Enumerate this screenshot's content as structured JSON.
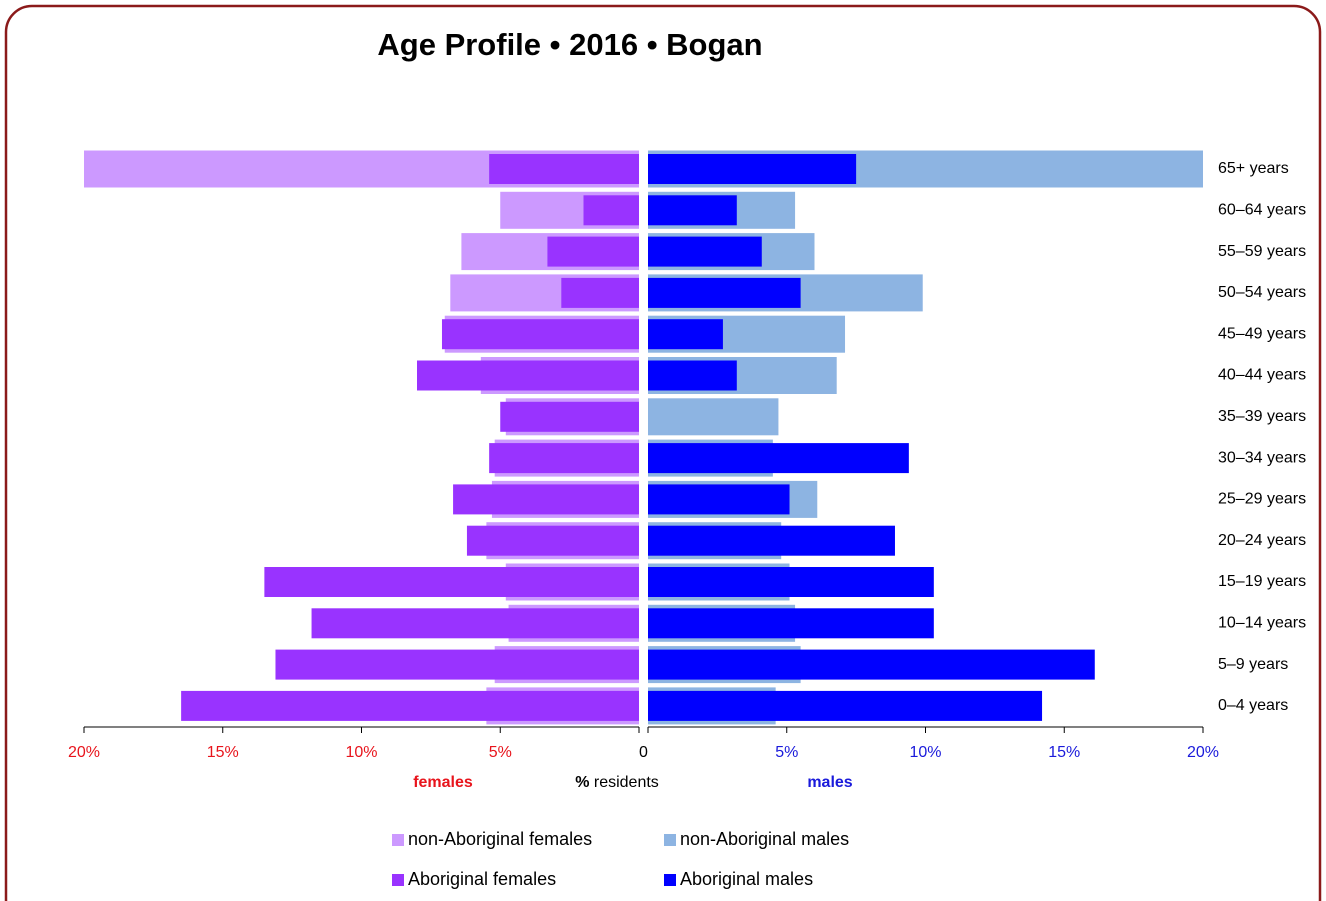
{
  "chart_data": {
    "type": "pyramid",
    "title": "Age Profile  •  2016  •  Bogan",
    "categories": [
      "0–4 years",
      "5–9 years",
      "10–14 years",
      "15–19 years",
      "20–24 years",
      "25–29 years",
      "30–34 years",
      "35–39 years",
      "40–44 years",
      "45–49 years",
      "50–54 years",
      "55–59 years",
      "60–64 years",
      "65+ years"
    ],
    "series": [
      {
        "name": "non-Aboriginal females",
        "color": "#cc99ff",
        "side": "left",
        "values": [
          5.5,
          5.2,
          4.7,
          4.8,
          5.5,
          5.3,
          5.2,
          4.8,
          5.7,
          7.0,
          6.8,
          6.4,
          5.0,
          20
        ]
      },
      {
        "name": "non-Aboriginal males",
        "color": "#8db4e2",
        "side": "right",
        "values": [
          4.6,
          5.5,
          5.3,
          5.1,
          4.8,
          6.1,
          4.5,
          4.7,
          6.8,
          7.1,
          9.9,
          6.0,
          5.3,
          20
        ]
      },
      {
        "name": "Aboriginal females",
        "color": "#9933ff",
        "side": "left",
        "values": [
          16.5,
          13.1,
          11.8,
          13.5,
          6.2,
          6.7,
          5.4,
          5.0,
          8.0,
          7.1,
          2.8,
          3.3,
          2.0,
          5.4
        ]
      },
      {
        "name": "Aboriginal males",
        "color": "#0000ff",
        "side": "right",
        "values": [
          14.2,
          16.1,
          10.3,
          10.3,
          8.9,
          5.1,
          9.4,
          0,
          3.2,
          2.7,
          5.5,
          4.1,
          3.2,
          7.5
        ]
      }
    ],
    "xlim": [
      0,
      20
    ],
    "xticks": [
      {
        "value": 0,
        "label": "0"
      },
      {
        "value": 5,
        "label": "5%"
      },
      {
        "value": 10,
        "label": "10%"
      },
      {
        "value": 15,
        "label": "15%"
      },
      {
        "value": 20,
        "label": "20%"
      }
    ],
    "left_label": "females",
    "left_color": "#e8141c",
    "right_label": "males",
    "right_color": "#1a1adb",
    "x_label_unit": "%",
    "x_label": "residents"
  }
}
